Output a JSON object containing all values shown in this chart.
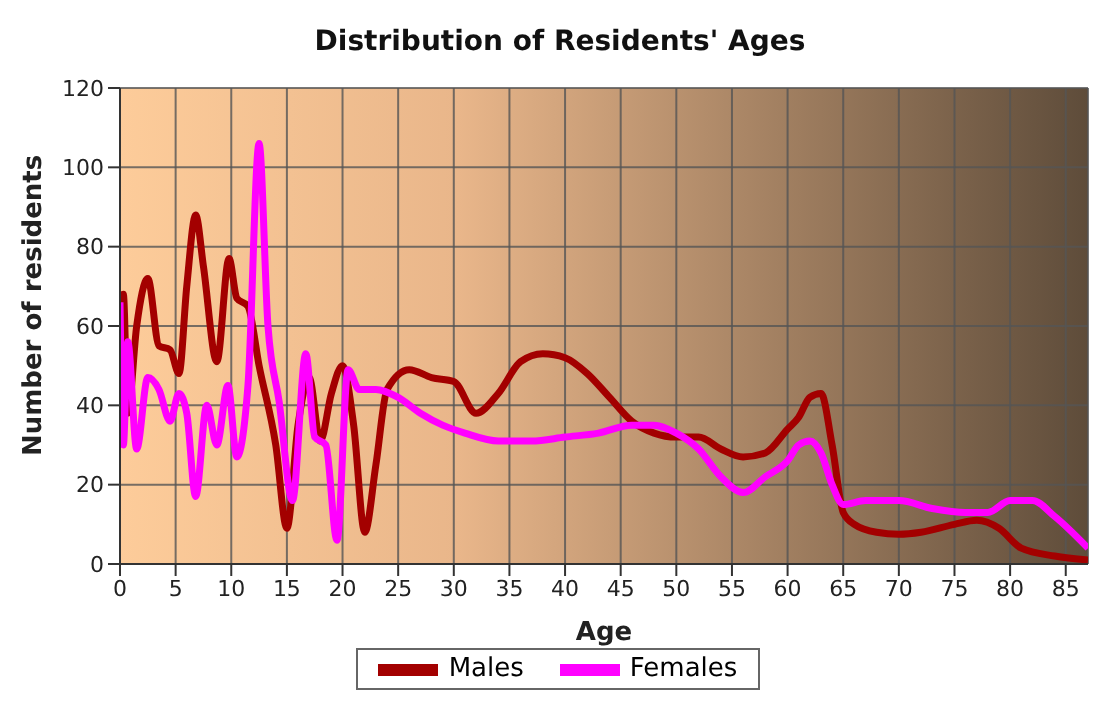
{
  "chart_data": {
    "type": "line",
    "title": "Distribution of Residents' Ages",
    "xlabel": "Age",
    "ylabel": "Number of residents",
    "xlim": [
      0,
      87
    ],
    "xticks": [
      0,
      5,
      10,
      15,
      20,
      25,
      30,
      35,
      40,
      45,
      50,
      55,
      60,
      65,
      70,
      75,
      80,
      85
    ],
    "ylim": [
      0,
      120
    ],
    "yticks": [
      0,
      20,
      40,
      60,
      80,
      100,
      120
    ],
    "grid": true,
    "legend": "bottom",
    "marker": "none",
    "line_style": "solid",
    "series": [
      {
        "name": "Males",
        "color": "#a30000",
        "x": [
          0,
          0.3,
          0.7,
          1.5,
          2.5,
          3.5,
          4.5,
          5.3,
          6,
          6.8,
          7.5,
          8.7,
          9.8,
          10.5,
          11.5,
          12.5,
          14,
          15,
          16,
          17,
          18,
          19,
          20,
          21,
          22,
          23,
          24,
          26,
          28,
          30,
          32,
          34,
          36,
          38,
          40,
          42,
          44,
          46,
          48,
          50,
          52,
          54,
          56,
          58,
          60,
          61,
          62,
          63,
          64,
          65,
          66,
          68,
          70,
          72,
          75,
          77,
          79,
          81,
          84,
          87
        ],
        "values": [
          32,
          68,
          38,
          60,
          72,
          55,
          54,
          48,
          70,
          88,
          75,
          51,
          77,
          67,
          65,
          50,
          30,
          9,
          35,
          47,
          31,
          43,
          50,
          35,
          8,
          25,
          44,
          49,
          47,
          46,
          38,
          43,
          51,
          53,
          52,
          48,
          42,
          36,
          33,
          32,
          32,
          29,
          27,
          28,
          34,
          37,
          42,
          43,
          30,
          13,
          10,
          8,
          7.5,
          8,
          10,
          11,
          9,
          4,
          2,
          1
        ]
      },
      {
        "name": "Females",
        "color": "#ff00ff",
        "x": [
          0,
          0.3,
          0.7,
          1.5,
          2.5,
          3.5,
          4.5,
          5.3,
          6,
          6.8,
          7.8,
          8.7,
          9.7,
          10.5,
          11.5,
          12.5,
          13.3,
          14.3,
          15.5,
          16.7,
          17.5,
          18.5,
          19.5,
          20.5,
          21.5,
          23,
          25,
          27,
          29,
          31,
          34,
          37,
          40,
          43,
          46,
          48,
          50,
          52,
          54,
          56,
          58,
          60,
          61,
          62,
          63,
          64,
          65,
          67,
          70,
          73,
          76,
          78,
          80,
          82,
          84,
          87
        ],
        "values": [
          66,
          30,
          56,
          29,
          47,
          44,
          36,
          43,
          38,
          17,
          40,
          30,
          45,
          27,
          45,
          106,
          60,
          41,
          16,
          53,
          32,
          30,
          6,
          49,
          44,
          44,
          42,
          38,
          35,
          33,
          31,
          31,
          32,
          33,
          35,
          35,
          33,
          29,
          22,
          18,
          22,
          26,
          30,
          31,
          28,
          20,
          15,
          16,
          16,
          14,
          13,
          13,
          16,
          16,
          12,
          4
        ]
      }
    ]
  }
}
